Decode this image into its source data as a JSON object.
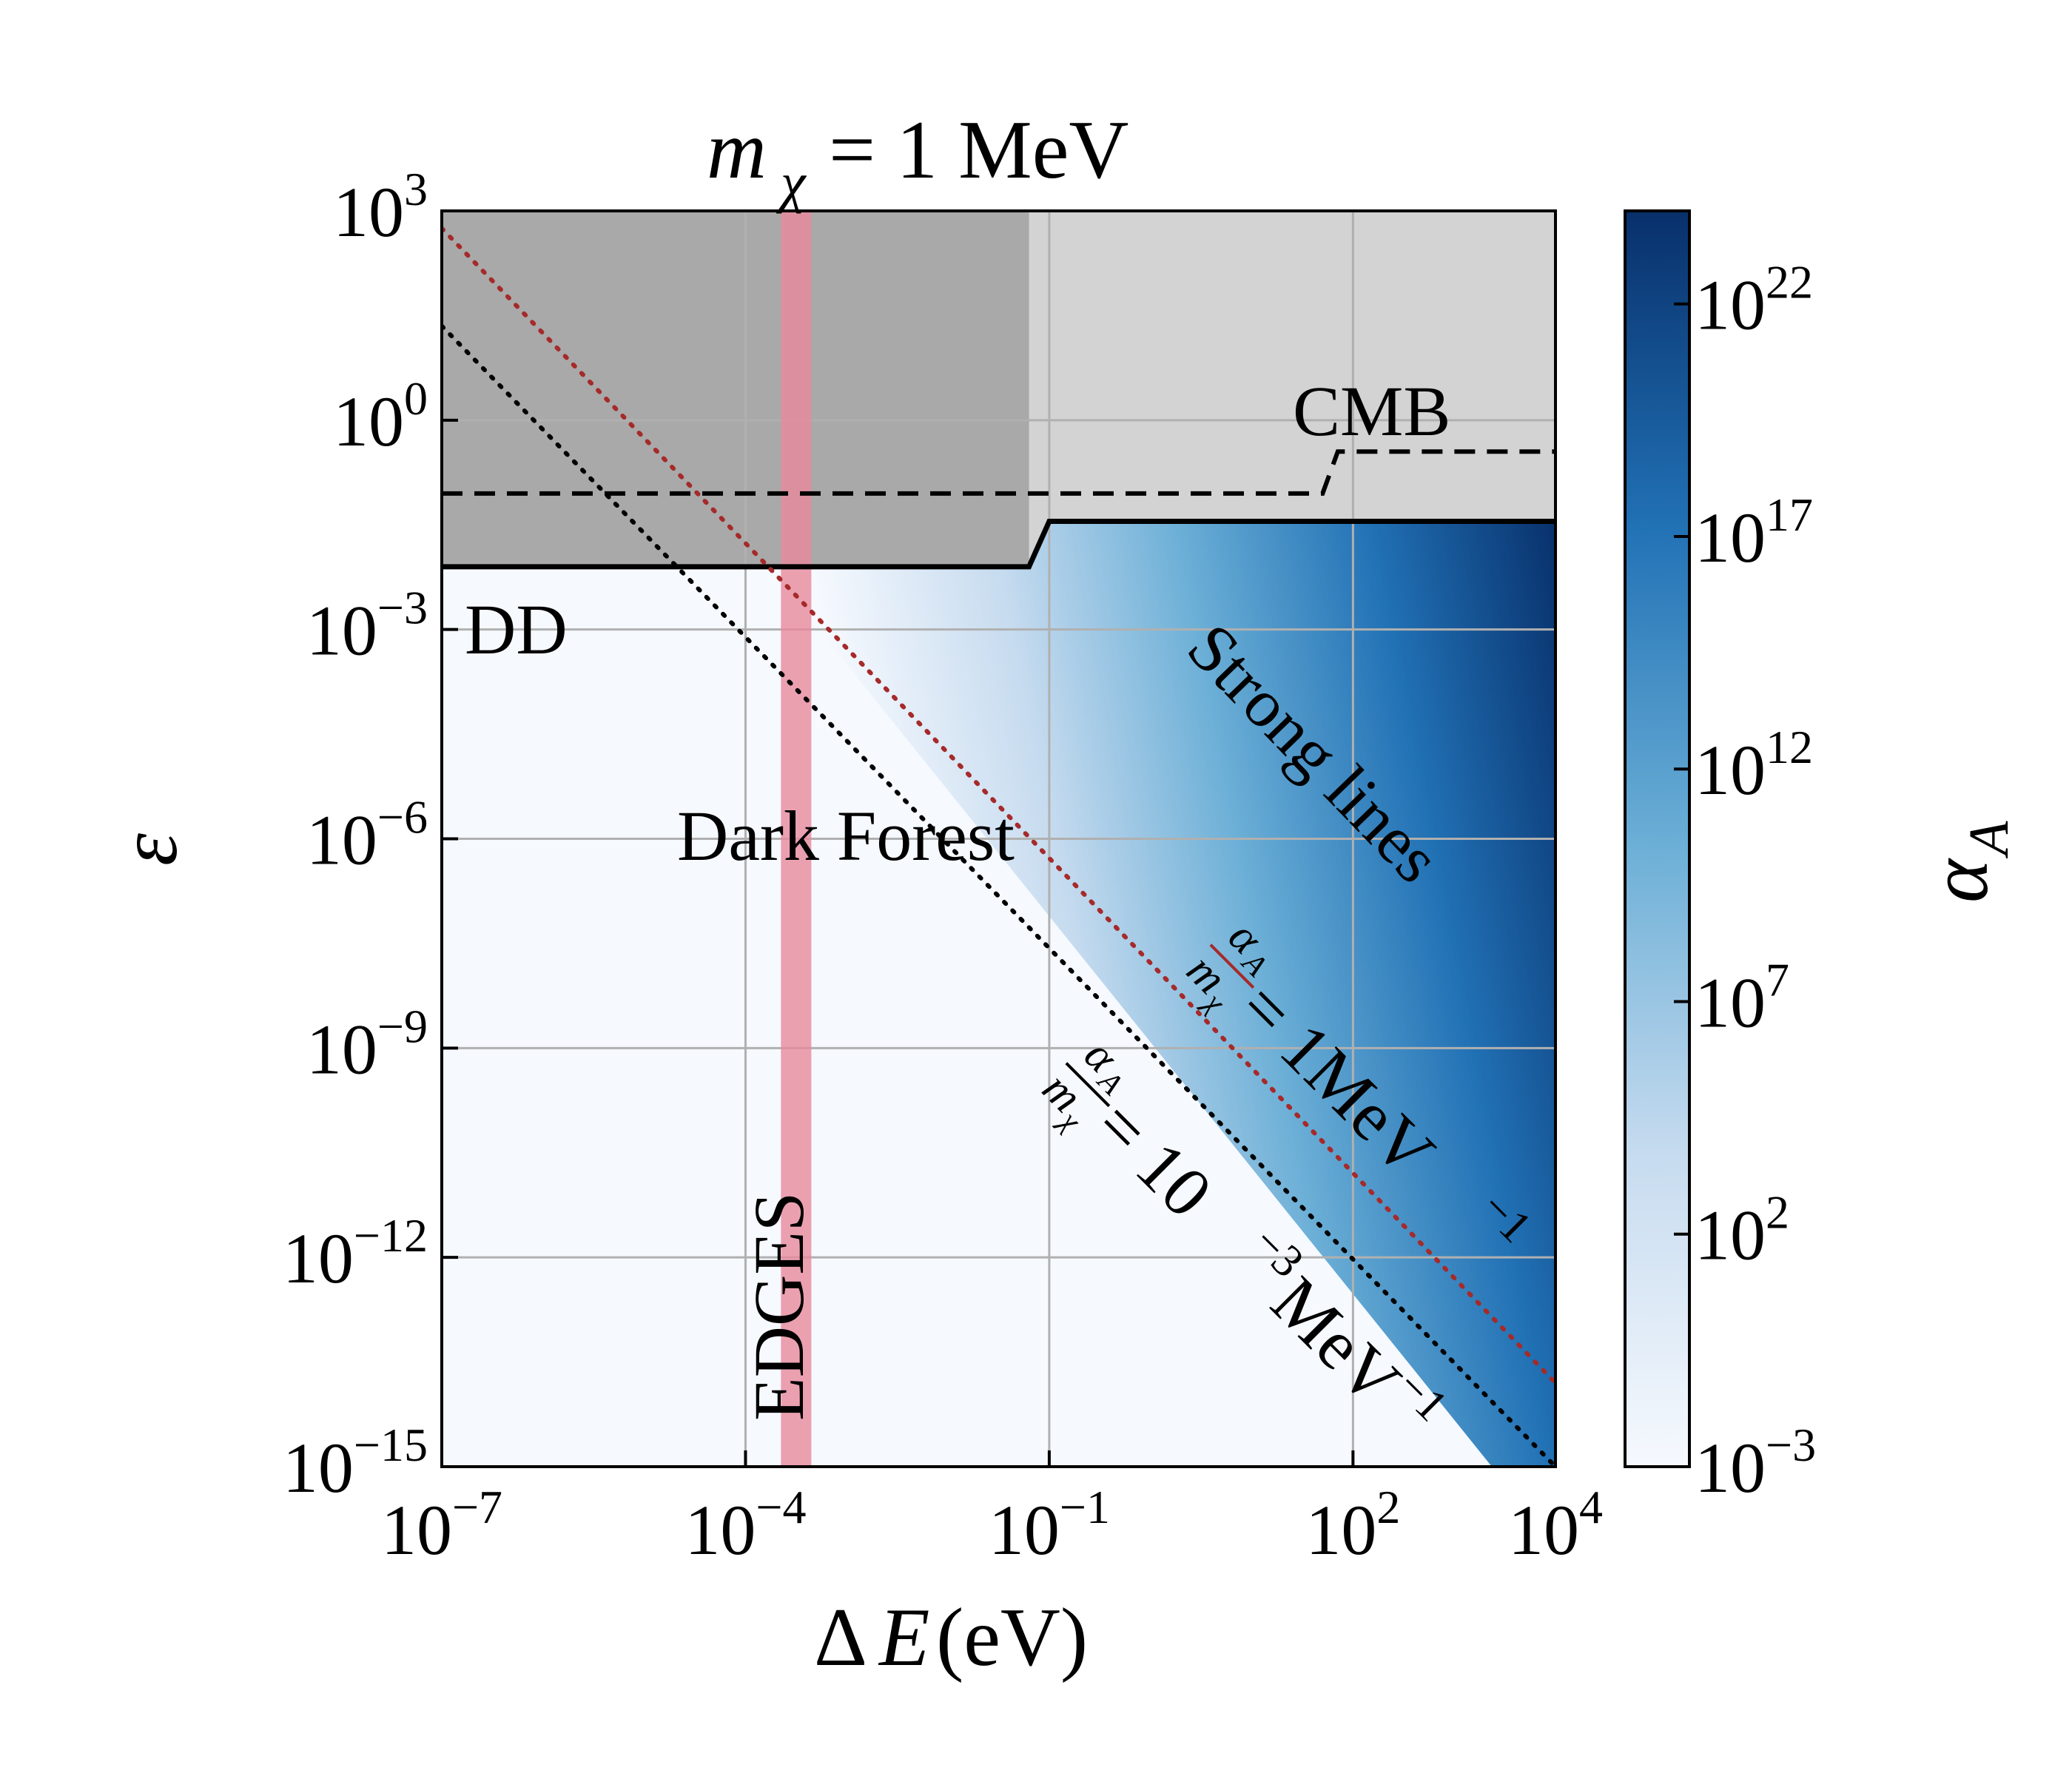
{
  "chart_data": {
    "type": "heatmap",
    "title": {
      "prefix": "m",
      "sub": "χ",
      "suffix": " = 1 MeV"
    },
    "xlabel": {
      "delta": "Δ",
      "var": "E",
      "unit": " (eV)"
    },
    "ylabel": "ε",
    "x_scale": "log",
    "y_scale": "log",
    "xlim_exp": [
      -7,
      4
    ],
    "ylim_exp": [
      -15,
      3
    ],
    "x_ticks": [
      {
        "base": "10",
        "exp": "−7",
        "value_exp": -7
      },
      {
        "base": "10",
        "exp": "−4",
        "value_exp": -4
      },
      {
        "base": "10",
        "exp": "−1",
        "value_exp": -1
      },
      {
        "base": "10",
        "exp": "2",
        "value_exp": 2
      },
      {
        "base": "10",
        "exp": "4",
        "value_exp": 4
      }
    ],
    "y_ticks": [
      {
        "base": "10",
        "exp": "3",
        "value_exp": 3
      },
      {
        "base": "10",
        "exp": "0",
        "value_exp": 0
      },
      {
        "base": "10",
        "exp": "−3",
        "value_exp": -3
      },
      {
        "base": "10",
        "exp": "−6",
        "value_exp": -6
      },
      {
        "base": "10",
        "exp": "−9",
        "value_exp": -9
      },
      {
        "base": "10",
        "exp": "−12",
        "value_exp": -12
      },
      {
        "base": "10",
        "exp": "−15",
        "value_exp": -15
      }
    ],
    "grid_x_exp": [
      -4,
      -1,
      2
    ],
    "grid_y_exp": [
      0,
      -3,
      -6,
      -9,
      -12
    ],
    "grid": true,
    "colorbar": {
      "label": "α",
      "label_sub": "A",
      "scale": "log",
      "range_exp": [
        -3,
        24
      ],
      "ticks": [
        {
          "base": "10",
          "exp": "22",
          "value_exp": 22
        },
        {
          "base": "10",
          "exp": "17",
          "value_exp": 17
        },
        {
          "base": "10",
          "exp": "12",
          "value_exp": 12
        },
        {
          "base": "10",
          "exp": "7",
          "value_exp": 7
        },
        {
          "base": "10",
          "exp": "2",
          "value_exp": 2
        },
        {
          "base": "10",
          "exp": "−3",
          "value_exp": -3
        }
      ],
      "colors": [
        "#f6f9fe",
        "#c6dbef",
        "#6aaed6",
        "#2171b5",
        "#08306b"
      ]
    },
    "regions": [
      {
        "name": "DD",
        "label": "DD",
        "type": "excluded",
        "color": "#a9a9a9",
        "boundary_log": [
          [
            -7,
            -2.1
          ],
          [
            -1.2,
            -2.1
          ],
          [
            -1.0,
            -1.45
          ],
          [
            4,
            -1.45
          ]
        ]
      },
      {
        "name": "CMB",
        "label": "CMB",
        "type": "excluded",
        "color": "#d3d3d3",
        "boundary_log": [
          [
            -7,
            -1.05
          ],
          [
            1.7,
            -1.05
          ],
          [
            1.85,
            -0.45
          ],
          [
            4,
            -0.45
          ]
        ]
      }
    ],
    "band": {
      "name": "EDGES",
      "label": "EDGES",
      "x_log_range": [
        -3.65,
        -3.35
      ],
      "color": "#e8899c"
    },
    "lines": [
      {
        "name": "alpha_over_m_1",
        "color": "#a52a2a",
        "style": "dotted",
        "points_log": [
          [
            -7,
            2.75
          ],
          [
            4,
            -13.8
          ]
        ],
        "label": {
          "frac_num": "α",
          "frac_num_sub": "A",
          "frac_den": "m",
          "frac_den_sub": "χ",
          "rhs": " = 1MeV",
          "rhs_sup": "−1"
        }
      },
      {
        "name": "alpha_over_m_1e-3",
        "color": "#000000",
        "style": "dotted",
        "points_log": [
          [
            -7,
            1.35
          ],
          [
            4,
            -15.0
          ]
        ],
        "label": {
          "frac_num": "α",
          "frac_num_sub": "A",
          "frac_den": "m",
          "frac_den_sub": "χ",
          "rhs": " = 10",
          "rhs_sup": "−3",
          "rhs_tail": "MeV",
          "rhs_tail_sup": "−1"
        }
      }
    ],
    "annotations": [
      {
        "name": "dark-forest",
        "text": "Dark Forest",
        "color": "#1a1a6e"
      },
      {
        "name": "strong-lines",
        "text": "Strong lines",
        "color": "#000000"
      }
    ]
  }
}
